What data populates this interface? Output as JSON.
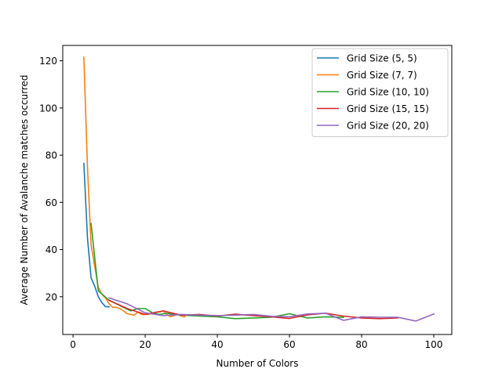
{
  "chart_data": {
    "type": "line",
    "title": "",
    "xlabel": "Number of Colors",
    "ylabel": "Average Number of Avalanche matches occurred",
    "xlim": [
      -2.85,
      105
    ],
    "ylim": [
      4.0,
      126.5
    ],
    "xticks": [
      0,
      20,
      40,
      60,
      80,
      100
    ],
    "yticks": [
      20,
      40,
      60,
      80,
      100,
      120
    ],
    "grid": false,
    "legend_position": "top-right",
    "series": [
      {
        "name": "Grid Size (5, 5)",
        "color": "#1f77b4",
        "x": [
          3,
          4,
          5,
          6,
          7,
          8,
          9,
          10
        ],
        "y": [
          76.5,
          45,
          28,
          24.5,
          20,
          17.5,
          15.8,
          15.7
        ]
      },
      {
        "name": "Grid Size (7, 7)",
        "color": "#ff7f0e",
        "x": [
          3,
          4,
          5,
          6,
          7,
          8,
          9,
          10,
          11,
          12,
          13,
          14,
          15,
          16,
          17,
          18,
          19,
          20,
          21,
          22,
          23,
          24,
          25,
          26,
          27,
          28,
          29,
          30,
          31
        ],
        "y": [
          121.5,
          75,
          42,
          33,
          24,
          21,
          19.5,
          17,
          15.5,
          15.5,
          15,
          14,
          12.8,
          12.5,
          12.2,
          13.5,
          12.5,
          12.5,
          12.5,
          13,
          13.5,
          13.5,
          14,
          12.5,
          11.5,
          12,
          12.5,
          11.8,
          11.5
        ]
      },
      {
        "name": "Grid Size (10, 10)",
        "color": "#2ca02c",
        "x": [
          5,
          7,
          10,
          12,
          14,
          16,
          18,
          20,
          22,
          24,
          26,
          28,
          30,
          35,
          40,
          45,
          50,
          55,
          60,
          65,
          70,
          75
        ],
        "y": [
          51,
          22.5,
          18.5,
          17,
          15.5,
          14,
          15,
          15,
          13.2,
          12.5,
          13,
          12.5,
          12.2,
          11.8,
          11.5,
          10.7,
          11,
          11.3,
          12.8,
          11,
          11.5,
          11.3
        ]
      },
      {
        "name": "Grid Size (15, 15)",
        "color": "#d62728",
        "x": [
          10,
          15,
          20,
          25,
          30,
          35,
          40,
          45,
          50,
          55,
          60,
          65,
          70,
          75,
          80,
          85,
          90
        ],
        "y": [
          18.5,
          15,
          12.5,
          14,
          12.2,
          12.5,
          11.8,
          12.6,
          12,
          11.5,
          10.8,
          12.3,
          13,
          11.8,
          11,
          10.7,
          11
        ]
      },
      {
        "name": "Grid Size (20, 20)",
        "color": "#9467bd",
        "x": [
          10,
          15,
          20,
          25,
          30,
          35,
          40,
          45,
          50,
          55,
          60,
          65,
          70,
          75,
          80,
          85,
          90,
          95,
          100
        ],
        "y": [
          19.5,
          17,
          13.2,
          12,
          12.5,
          12.2,
          12,
          12.2,
          12.5,
          11.7,
          11.5,
          12.7,
          13,
          10,
          11.5,
          11.3,
          11.3,
          9.7,
          12.7
        ]
      }
    ]
  }
}
